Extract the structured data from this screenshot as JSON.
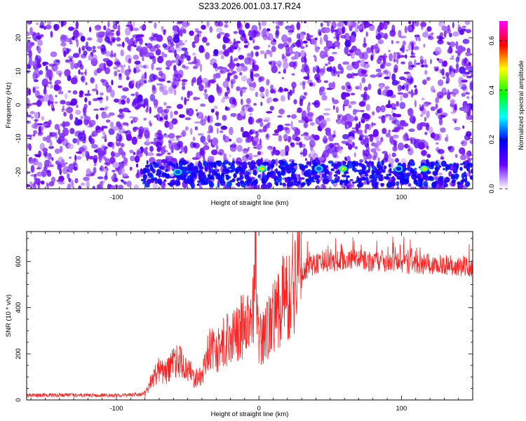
{
  "chart_data": [
    {
      "type": "heatmap",
      "title": "S233.2026.001.03.17.R24",
      "xlabel": "Height of straight line (km)",
      "ylabel": "Frequency (Hz)",
      "xlim": [
        -163,
        150
      ],
      "ylim": [
        -25,
        25
      ],
      "xticks": [
        -100,
        0,
        100
      ],
      "yticks": [
        20,
        10,
        0,
        -10,
        -20
      ],
      "colorbar": {
        "label": "Normalized spectral amplitude",
        "range": [
          0.0,
          0.68
        ],
        "ticks": [
          0.0,
          0.2,
          0.4,
          0.6
        ],
        "colormap": [
          "#ffffff",
          "#6a00ff",
          "#0000ff",
          "#00ffff",
          "#00ff00",
          "#ffff00",
          "#ff0000",
          "#ff00ff"
        ]
      },
      "peaks": [
        {
          "x": -57,
          "y": -20,
          "value": 0.25
        },
        {
          "x": 2,
          "y": -19,
          "value": 0.5
        },
        {
          "x": 42,
          "y": -19,
          "value": 0.25
        },
        {
          "x": 59,
          "y": -19,
          "value": 0.48
        },
        {
          "x": 98,
          "y": -19,
          "value": 0.22
        },
        {
          "x": 116,
          "y": -19,
          "value": 0.5
        }
      ]
    },
    {
      "type": "line",
      "title": "",
      "xlabel": "Height of straight line (km)",
      "ylabel": "SNR (10 * v/v)",
      "xlim": [
        -163,
        150
      ],
      "ylim": [
        0,
        730
      ],
      "xticks": [
        -100,
        0,
        100
      ],
      "yticks": [
        0,
        200,
        400,
        600
      ],
      "series": [
        {
          "name": "SNR",
          "color": "#ff2020",
          "x": [
            -163,
            -140,
            -120,
            -100,
            -90,
            -82,
            -78,
            -75,
            -70,
            -65,
            -60,
            -55,
            -50,
            -45,
            -40,
            -35,
            -30,
            -25,
            -20,
            -15,
            -10,
            -5,
            -2,
            0,
            2,
            5,
            10,
            15,
            20,
            25,
            30,
            40,
            50,
            60,
            70,
            80,
            90,
            100,
            110,
            120,
            130,
            140,
            150
          ],
          "y": [
            20,
            22,
            20,
            21,
            22,
            24,
            45,
            90,
            130,
            120,
            160,
            175,
            140,
            90,
            110,
            230,
            200,
            260,
            270,
            300,
            330,
            300,
            620,
            240,
            280,
            290,
            350,
            410,
            470,
            520,
            560,
            590,
            600,
            605,
            610,
            600,
            600,
            595,
            590,
            590,
            585,
            580,
            575
          ]
        }
      ]
    }
  ]
}
